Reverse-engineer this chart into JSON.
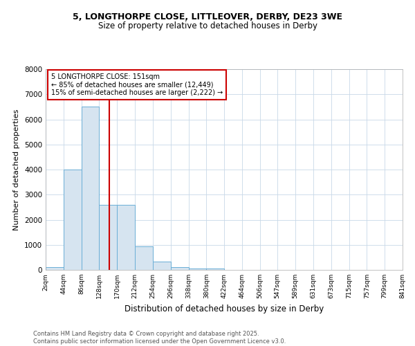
{
  "title_line1": "5, LONGTHORPE CLOSE, LITTLEOVER, DERBY, DE23 3WE",
  "title_line2": "Size of property relative to detached houses in Derby",
  "xlabel": "Distribution of detached houses by size in Derby",
  "ylabel": "Number of detached properties",
  "bar_edges": [
    2,
    44,
    86,
    128,
    170,
    212,
    254,
    296,
    338,
    380,
    422,
    464,
    506,
    547,
    589,
    631,
    673,
    715,
    757,
    799,
    841
  ],
  "bar_heights": [
    100,
    4000,
    6500,
    2600,
    2600,
    950,
    330,
    120,
    60,
    50,
    0,
    0,
    0,
    0,
    0,
    0,
    0,
    0,
    0,
    0
  ],
  "bar_color": "#d6e4f0",
  "bar_edgecolor": "#6aaed6",
  "grid_color": "#c8d8e8",
  "vline_x": 151,
  "vline_color": "#cc0000",
  "annotation_title": "5 LONGTHORPE CLOSE: 151sqm",
  "annotation_line2": "← 85% of detached houses are smaller (12,449)",
  "annotation_line3": "15% of semi-detached houses are larger (2,222) →",
  "annotation_box_color": "#cc0000",
  "ylim": [
    0,
    8000
  ],
  "yticks": [
    0,
    1000,
    2000,
    3000,
    4000,
    5000,
    6000,
    7000,
    8000
  ],
  "tick_labels": [
    "2sqm",
    "44sqm",
    "86sqm",
    "128sqm",
    "170sqm",
    "212sqm",
    "254sqm",
    "296sqm",
    "338sqm",
    "380sqm",
    "422sqm",
    "464sqm",
    "506sqm",
    "547sqm",
    "589sqm",
    "631sqm",
    "673sqm",
    "715sqm",
    "757sqm",
    "799sqm",
    "841sqm"
  ],
  "footnote1": "Contains HM Land Registry data © Crown copyright and database right 2025.",
  "footnote2": "Contains public sector information licensed under the Open Government Licence v3.0.",
  "background_color": "#ffffff",
  "plot_bg_color": "#ffffff"
}
